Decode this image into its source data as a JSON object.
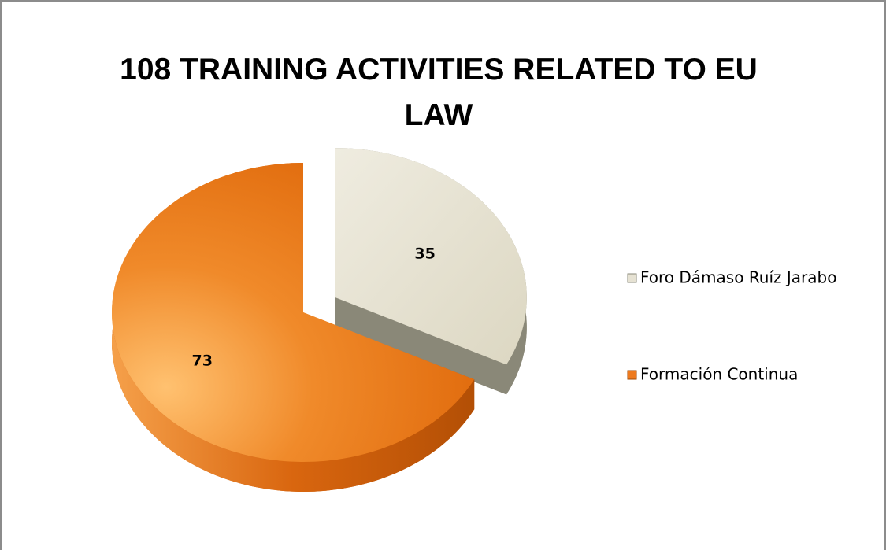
{
  "chart_data": {
    "type": "pie3d",
    "title": "108 TRAINING ACTIVITIES RELATED TO EU LAW",
    "categories": [
      "Foro Dámaso Ruíz Jarabo",
      "Formación Continua"
    ],
    "values": [
      35,
      73
    ],
    "colors": [
      "#e6e2d3",
      "#ee7a1e"
    ],
    "exploded": [
      true,
      false
    ],
    "legend": "right"
  }
}
